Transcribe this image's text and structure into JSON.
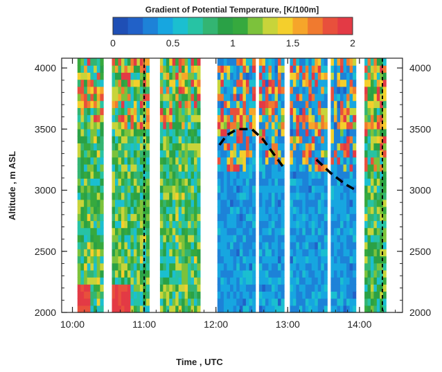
{
  "chart_data": {
    "type": "heatmap",
    "title": "",
    "colorbar": {
      "title": "Gradient of Potential Temperature, [K/100m]",
      "range": [
        0,
        2
      ],
      "tick_labels": [
        "0",
        "0.5",
        "1",
        "1.5",
        "2"
      ],
      "ticks": [
        0,
        0.5,
        1,
        1.5,
        2
      ],
      "colors": [
        "#1f4fb5",
        "#2161c8",
        "#1d82d8",
        "#17a6e0",
        "#1bbfd0",
        "#27c3a4",
        "#33b572",
        "#2aa146",
        "#36a93e",
        "#7cc23b",
        "#c8d43a",
        "#f4cf2c",
        "#f6a52a",
        "#f07a2f",
        "#e8503c",
        "#e33a45"
      ]
    },
    "xlabel": "Time , UTC",
    "ylabel": "Altitude , m ASL",
    "x_tick_labels": [
      "10:00",
      "11:00",
      "12:00",
      "13:00",
      "14:00"
    ],
    "x_ticks": [
      10,
      11,
      12,
      13,
      14
    ],
    "y_tick_labels": [
      "2000",
      "2500",
      "3000",
      "3500",
      "4000"
    ],
    "y_ticks": [
      2000,
      2500,
      3000,
      3500,
      4000
    ],
    "xlim": [
      9.85,
      14.6
    ],
    "ylim": [
      2000,
      4080
    ],
    "data_segments": [
      {
        "start": 10.07,
        "end": 10.43
      },
      {
        "start": 10.55,
        "end": 11.07
      },
      {
        "start": 11.22,
        "end": 11.78
      },
      {
        "start": 12.02,
        "end": 12.55
      },
      {
        "start": 12.6,
        "end": 12.95
      },
      {
        "start": 13.03,
        "end": 13.55
      },
      {
        "start": 13.6,
        "end": 13.95
      },
      {
        "start": 14.07,
        "end": 14.37
      }
    ],
    "dashed_curve_segments": [
      {
        "x": [
          12.05,
          12.15,
          12.3,
          12.5,
          12.65,
          12.8,
          12.95
        ],
        "y": [
          3370,
          3450,
          3500,
          3500,
          3420,
          3300,
          3180
        ]
      },
      {
        "x": [
          13.4,
          13.6,
          13.8,
          13.95
        ],
        "y": [
          3250,
          3140,
          3050,
          3000
        ]
      }
    ],
    "vertical_dashed_lines": [
      11.0,
      14.32
    ],
    "right_axis_tick_labels": [
      "2000",
      "2500",
      "3000",
      "3500",
      "4000"
    ]
  }
}
